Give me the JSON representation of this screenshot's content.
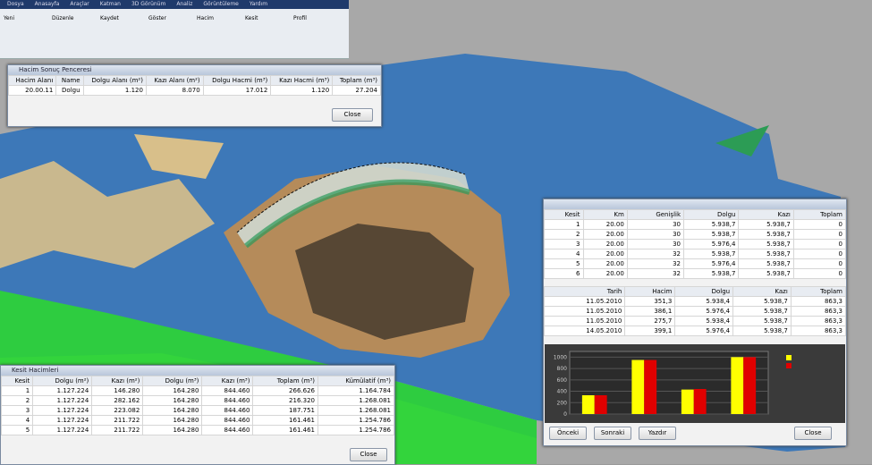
{
  "ribbon": {
    "tabs": [
      "Dosya",
      "Anasayfa",
      "Araçlar",
      "Katman",
      "3D Görünüm",
      "Analiz",
      "Görüntüleme",
      "Yardım"
    ],
    "items": [
      "Yeni",
      "Düzenle",
      "Kaydet",
      "Göster",
      "Hacim",
      "Kesit",
      "Profil"
    ]
  },
  "volume_window": {
    "title": "Hacim Sonuç Penceresi",
    "table": {
      "header": [
        "Hacim Alanı",
        "Name",
        "Dolgu Alanı (m²)",
        "Kazı Alanı (m²)",
        "Dolgu Hacmi (m³)",
        "Kazı Hacmi (m³)",
        "Toplam (m³)"
      ],
      "rows": [
        [
          "20.00.11",
          "Dolgu",
          "1.120",
          "8.070",
          "17.012",
          "1.120",
          "27.204"
        ]
      ]
    },
    "button": "Close"
  },
  "cross_table": {
    "title": "Kesit Hacimleri",
    "table": {
      "header": [
        "Kesit",
        "Dolgu (m²)",
        "Kazı (m²)",
        "Dolgu (m³)",
        "Kazı (m³)",
        "Toplam (m³)",
        "Kümülatif (m³)"
      ],
      "rows": [
        [
          "1",
          "1.127.224",
          "146.280",
          "164.280",
          "844.460",
          "266.626",
          "1.164.784"
        ],
        [
          "2",
          "1.127.224",
          "282.162",
          "164.280",
          "844.460",
          "216.320",
          "1.268.081"
        ],
        [
          "3",
          "1.127.224",
          "223.082",
          "164.280",
          "844.460",
          "187.751",
          "1.268.081"
        ],
        [
          "4",
          "1.127.224",
          "211.722",
          "164.280",
          "844.460",
          "161.461",
          "1.254.786"
        ],
        [
          "5",
          "1.127.224",
          "211.722",
          "164.280",
          "844.460",
          "161.461",
          "1.254.786"
        ]
      ]
    },
    "button": "Close"
  },
  "analysis_window": {
    "top_table": {
      "header": [
        "Kesit",
        "Km",
        "Genişlik",
        "Dolgu",
        "Kazı",
        "Toplam"
      ],
      "rows": [
        [
          "1",
          "20.00",
          "30",
          "5.938,7",
          "5.938,7",
          "0"
        ],
        [
          "2",
          "20.00",
          "30",
          "5.938,7",
          "5.938,7",
          "0"
        ],
        [
          "3",
          "20.00",
          "30",
          "5.976,4",
          "5.938,7",
          "0"
        ],
        [
          "4",
          "20.00",
          "32",
          "5.938,7",
          "5.938,7",
          "0"
        ],
        [
          "5",
          "20.00",
          "32",
          "5.976,4",
          "5.938,7",
          "0"
        ],
        [
          "6",
          "20.00",
          "32",
          "5.938,7",
          "5.938,7",
          "0"
        ]
      ]
    },
    "bottom_table": {
      "header": [
        "Tarih",
        "Hacim",
        "Dolgu",
        "Kazı",
        "Toplam"
      ],
      "rows": [
        [
          "11.05.2010",
          "351,3",
          "5.938,4",
          "5.938,7",
          "863,3"
        ],
        [
          "11.05.2010",
          "386,1",
          "5.976,4",
          "5.938,7",
          "863,3"
        ],
        [
          "11.05.2010",
          "275,7",
          "5.938,4",
          "5.938,7",
          "863,3"
        ],
        [
          "14.05.2010",
          "399,1",
          "5.976,4",
          "5.938,7",
          "863,3"
        ]
      ]
    },
    "chart": {
      "type": "bar",
      "ylim": [
        0,
        1100
      ],
      "yticks": [
        0,
        200,
        400,
        600,
        800,
        1000
      ],
      "series": [
        {
          "color": "#ffff00",
          "values": [
            330,
            950,
            430,
            1000
          ]
        },
        {
          "color": "#e00000",
          "values": [
            330,
            950,
            440,
            1000
          ]
        }
      ]
    },
    "buttons": [
      "Önceki",
      "Sonraki",
      "Yazdır",
      "Close"
    ]
  }
}
